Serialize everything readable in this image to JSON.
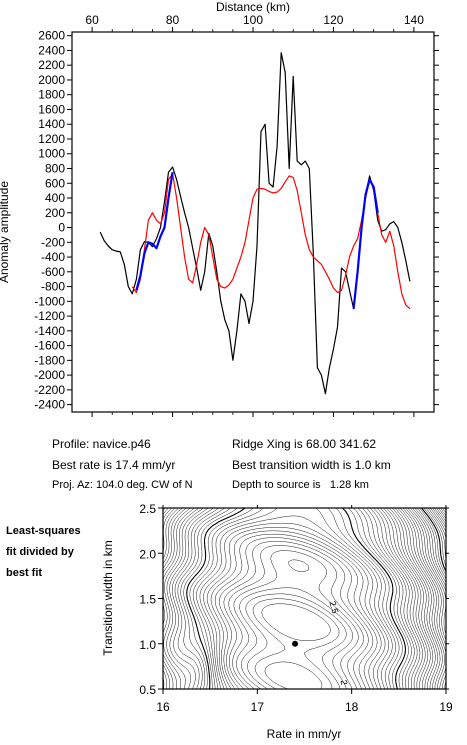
{
  "chart_data": [
    {
      "type": "line",
      "xlabel": "Distance (km)",
      "ylabel": "Anomaly amplitude",
      "xlim": [
        55,
        145
      ],
      "ylim": [
        -2500,
        2650
      ],
      "xticks": [
        60,
        80,
        100,
        120,
        140
      ],
      "yticks": [
        -2400,
        -2200,
        -2000,
        -1800,
        -1600,
        -1400,
        -1200,
        -1000,
        -800,
        -600,
        -400,
        -200,
        0,
        200,
        400,
        600,
        800,
        1000,
        1200,
        1400,
        1600,
        1800,
        2000,
        2200,
        2400,
        2600
      ],
      "grid": false,
      "series": [
        {
          "color": "#000000",
          "x": [
            62,
            63,
            64,
            65,
            66,
            67,
            68,
            69,
            70,
            71,
            72,
            73,
            74,
            75,
            76,
            77,
            78,
            79,
            80,
            81,
            82,
            83,
            84,
            85,
            86,
            87,
            88,
            89,
            90,
            91,
            92,
            93,
            94,
            95,
            96,
            97,
            98,
            99,
            100,
            101,
            102,
            103,
            104,
            105,
            106,
            107,
            108,
            109,
            110,
            111,
            112,
            113,
            114,
            115,
            116,
            117,
            118,
            119,
            120,
            121,
            122,
            123,
            124,
            125,
            126,
            127,
            128,
            129,
            130,
            131,
            132,
            133,
            134,
            135,
            136,
            137,
            138,
            139
          ],
          "y": [
            -60,
            -180,
            -250,
            -300,
            -320,
            -330,
            -500,
            -800,
            -900,
            -700,
            -300,
            -190,
            -200,
            -260,
            -150,
            0,
            350,
            750,
            820,
            650,
            420,
            200,
            0,
            -280,
            -550,
            -850,
            -600,
            -80,
            -250,
            -600,
            -1000,
            -1250,
            -1400,
            -1800,
            -1400,
            -900,
            -1000,
            -1300,
            -1000,
            -250,
            1300,
            1400,
            600,
            550,
            1100,
            2370,
            2100,
            800,
            2050,
            900,
            850,
            900,
            800,
            -350,
            -1900,
            -2000,
            -2250,
            -1900,
            -1650,
            -1350,
            -550,
            -600,
            -850,
            -1100,
            -600,
            0,
            450,
            700,
            500,
            100,
            -50,
            -30,
            50,
            80,
            0,
            -200,
            -450,
            -730
          ]
        },
        {
          "color": "#ff0000",
          "x": [
            70,
            71,
            72,
            73,
            74,
            75,
            76,
            77,
            78,
            79,
            80,
            81,
            82,
            83,
            84,
            85,
            86,
            87,
            88,
            89,
            90,
            91,
            92,
            93,
            94,
            95,
            96,
            97,
            98,
            99,
            100,
            101,
            102,
            103,
            104,
            105,
            106,
            107,
            108,
            109,
            110,
            111,
            112,
            113,
            114,
            115,
            116,
            117,
            118,
            119,
            120,
            121,
            122,
            123,
            124,
            125,
            126,
            127,
            128,
            129,
            130,
            131,
            132,
            133,
            134,
            135,
            136,
            137,
            138,
            139
          ],
          "y": [
            -800,
            -880,
            -700,
            -300,
            100,
            200,
            100,
            50,
            200,
            650,
            730,
            400,
            0,
            -400,
            -700,
            -750,
            -500,
            -200,
            0,
            -100,
            -400,
            -700,
            -800,
            -820,
            -780,
            -700,
            -550,
            -400,
            -200,
            100,
            400,
            520,
            530,
            520,
            490,
            470,
            480,
            530,
            620,
            700,
            680,
            500,
            200,
            -100,
            -300,
            -400,
            -450,
            -500,
            -600,
            -700,
            -820,
            -880,
            -850,
            -650,
            -400,
            -250,
            -150,
            100,
            400,
            650,
            550,
            200,
            -100,
            -200,
            -50,
            -250,
            -600,
            -900,
            -1050,
            -1100
          ]
        },
        {
          "color": "#0000ff",
          "x": [
            71,
            72,
            73,
            74,
            75,
            76,
            77,
            78,
            79,
            80
          ],
          "y": [
            -850,
            -650,
            -350,
            -200,
            -220,
            -280,
            -120,
            0,
            400,
            750
          ]
        },
        {
          "color": "#0000ff",
          "x": [
            125,
            126,
            127,
            128,
            129,
            130,
            131
          ],
          "y": [
            -1100,
            -600,
            0,
            450,
            650,
            550,
            200
          ]
        }
      ]
    },
    {
      "type": "contour",
      "xlabel": "Rate in mm/yr",
      "ylabel": "Transition width in km",
      "xlim": [
        16,
        19
      ],
      "ylim": [
        0.5,
        2.5
      ],
      "xticks": [
        16,
        17,
        18,
        19
      ],
      "yticks": [
        0.5,
        1.0,
        1.5,
        2.0,
        2.5
      ],
      "best_fit": {
        "rate": 17.4,
        "width": 1.0
      },
      "contour_labels": [
        "2.5",
        "2"
      ]
    }
  ],
  "info": {
    "profile": "Profile: navice.p46",
    "best_rate": "Best rate is 17.4 mm/yr",
    "proj_az": "Proj. Az: 104.0 deg. CW of N",
    "ridge": "Ridge Xing is 68.00 341.62",
    "transition": "Best transition width is 1.0 km",
    "depth": "Depth to source is   1.28 km"
  },
  "side_note": [
    "Least-squares",
    "fit divided by",
    "best fit"
  ],
  "axis_text": {
    "top_xlabel": "Distance (km)",
    "top_ylabel": "Anomaly amplitude",
    "bottom_xlabel": "Rate in mm/yr",
    "bottom_ylabel": "Transition width in km"
  }
}
